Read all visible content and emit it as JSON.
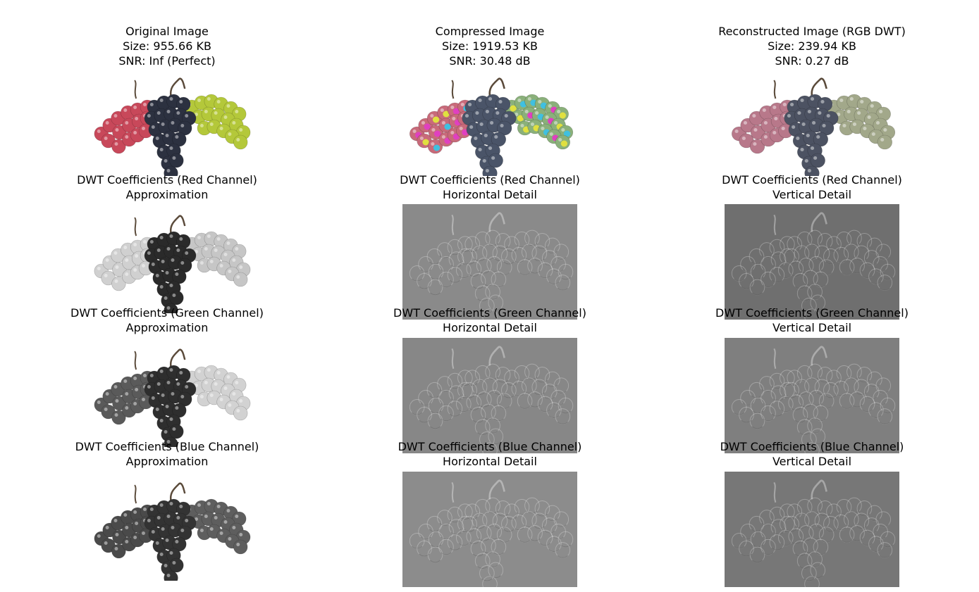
{
  "figure": {
    "panels": [
      {
        "id": "original",
        "title_lines": [
          "Original Image",
          "Size: 955.66 KB",
          "SNR: Inf (Perfect)"
        ],
        "render": "color"
      },
      {
        "id": "compressed",
        "title_lines": [
          "Compressed Image",
          "Size: 1919.53 KB",
          "SNR: 30.48 dB"
        ],
        "render": "color-artifacts"
      },
      {
        "id": "reconstructed",
        "title_lines": [
          "Reconstructed Image (RGB DWT)",
          "Size: 239.94 KB",
          "SNR: 0.27 dB"
        ],
        "render": "color-washed"
      },
      {
        "id": "red-approx",
        "title_lines": [
          "DWT Coefficients (Red Channel)",
          "Approximation"
        ],
        "render": "gray-red"
      },
      {
        "id": "red-horizontal",
        "title_lines": [
          "DWT Coefficients (Red Channel)",
          "Horizontal Detail"
        ],
        "render": "detail",
        "bg": "#8a8a8a"
      },
      {
        "id": "red-vertical",
        "title_lines": [
          "DWT Coefficients (Red Channel)",
          "Vertical Detail"
        ],
        "render": "detail",
        "bg": "#6f6f6f"
      },
      {
        "id": "green-approx",
        "title_lines": [
          "DWT Coefficients (Green Channel)",
          "Approximation"
        ],
        "render": "gray-green"
      },
      {
        "id": "green-horizontal",
        "title_lines": [
          "DWT Coefficients (Green Channel)",
          "Horizontal Detail"
        ],
        "render": "detail",
        "bg": "#878787"
      },
      {
        "id": "green-vertical",
        "title_lines": [
          "DWT Coefficients (Green Channel)",
          "Vertical Detail"
        ],
        "render": "detail",
        "bg": "#7f7f7f"
      },
      {
        "id": "blue-approx",
        "title_lines": [
          "DWT Coefficients (Blue Channel)",
          "Approximation"
        ],
        "render": "gray-blue"
      },
      {
        "id": "blue-horizontal",
        "title_lines": [
          "DWT Coefficients (Blue Channel)",
          "Horizontal Detail"
        ],
        "render": "detail",
        "bg": "#8c8c8c"
      },
      {
        "id": "blue-vertical",
        "title_lines": [
          "DWT Coefficients (Blue Channel)",
          "Vertical Detail"
        ],
        "render": "detail",
        "bg": "#777777"
      }
    ]
  }
}
